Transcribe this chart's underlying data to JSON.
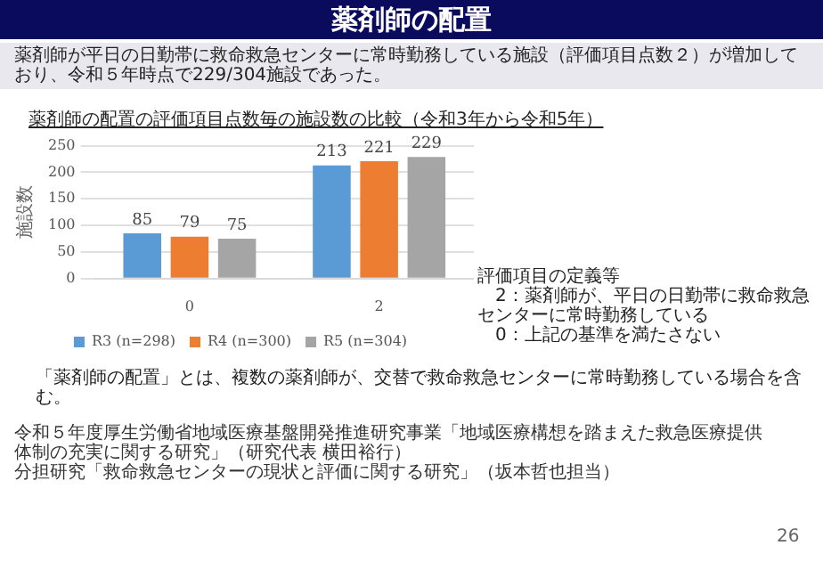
{
  "chart_data": {
    "type": "bar",
    "title": "薬剤師の配置",
    "subtitle": "薬剤師が平日の日勤帯に救命救急センターに常時勤務している施設（評価項目点数２）が増加しており、令和５年時点で229/304施設であった。",
    "categories": [
      "0",
      "2"
    ],
    "series": [
      {
        "name": "R3 (n=298)",
        "color": "#5b9bd5",
        "values": [
          85,
          213
        ]
      },
      {
        "name": "R4 (n=300)",
        "color": "#ed7d31",
        "values": [
          79,
          221
        ]
      },
      {
        "name": "R5 (n=304)",
        "color": "#a5a5a5",
        "values": [
          75,
          229
        ]
      }
    ],
    "ylabel": "施設数",
    "ylim": [
      0,
      250
    ],
    "yticks": [
      0,
      50,
      100,
      150,
      200,
      250
    ],
    "grid": "y",
    "legend": "bottom",
    "data_labels": true,
    "annotations": [
      "薬剤師の配置の評価項目点数毎の施設数の比較（令和3年から令和5年）",
      "評価項目の定義等\n　2：薬剤師が、平日の日勤帯に救命救急センターに常時勤務している\n　0：上記の基準を満たさない",
      "「薬剤師の配置」とは、複数の薬剤師が、交替で救命救急センターに常時勤務している場合を含む。",
      "令和５年度厚生労働省地域医療基盤開発推進研究事業「地域医療構想を踏まえた救急医療提供体制の充実に関する研究」（研究代表 横田裕行）",
      "分担研究「救命救急センターの現状と評価に関する研究」（坂本哲也担当）",
      "26"
    ]
  }
}
